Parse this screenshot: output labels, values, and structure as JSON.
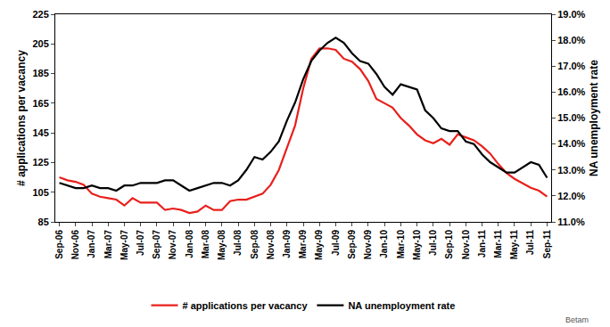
{
  "chart_data": {
    "type": "line",
    "categories": [
      "Sep-06",
      null,
      "Nov-06",
      null,
      "Jan-07",
      null,
      "Mar-07",
      null,
      "May-07",
      null,
      "Jul-07",
      null,
      "Sep-07",
      null,
      "Nov-07",
      null,
      "Jan-08",
      null,
      "Mar-08",
      null,
      "May-08",
      null,
      "Jul-08",
      null,
      "Sep-08",
      null,
      "Nov-08",
      null,
      "Jan-09",
      null,
      "Mar-09",
      null,
      "May-09",
      null,
      "Jul-09",
      null,
      "Sep-09",
      null,
      "Nov-09",
      null,
      "Jan-10",
      null,
      "Mar-10",
      null,
      "May-10",
      null,
      "Jul-10",
      null,
      "Sep-10",
      null,
      "Nov-10",
      null,
      "Jan-11",
      null,
      "Mar-11",
      null,
      "May-11",
      null,
      "Jul-11",
      null,
      "Sep-11"
    ],
    "y_label": "# applications per vacancy",
    "y2_label": "NA unemployment rate",
    "ylim": [
      85,
      225
    ],
    "yticks": [
      85,
      105,
      125,
      145,
      165,
      185,
      205,
      225
    ],
    "y2lim": [
      11,
      19
    ],
    "y2ticks": [
      {
        "value": 11,
        "label": "11.0%"
      },
      {
        "value": 12,
        "label": "12.0%"
      },
      {
        "value": 13,
        "label": "13.0%"
      },
      {
        "value": 14,
        "label": "14.0%"
      },
      {
        "value": 15,
        "label": "15.0%"
      },
      {
        "value": 16,
        "label": "16.0%"
      },
      {
        "value": 17,
        "label": "17.0%"
      },
      {
        "value": 18,
        "label": "18.0%"
      },
      {
        "value": 19,
        "label": "19.0%"
      }
    ],
    "grid": false,
    "legend": "bottom",
    "annotations": [
      {
        "text": "Betam"
      }
    ],
    "series": [
      {
        "name": "# applications per vacancy",
        "color": "#e8201c",
        "axis": "y",
        "values": [
          115,
          113,
          112,
          110,
          104,
          102,
          101,
          100,
          96,
          101,
          98,
          98,
          98,
          93,
          94,
          93,
          91,
          92,
          96,
          93,
          93,
          99,
          100,
          100,
          102,
          104,
          110,
          120,
          135,
          150,
          175,
          195,
          202,
          202,
          201,
          195,
          193,
          188,
          180,
          168,
          165,
          162,
          155,
          150,
          144,
          140,
          138,
          141,
          137,
          144,
          142,
          140,
          136,
          131,
          124,
          118,
          114,
          111,
          108,
          106,
          102
        ]
      },
      {
        "name": "NA unemployment rate",
        "color": "#000000",
        "axis": "y2",
        "values": [
          12.5,
          12.4,
          12.3,
          12.3,
          12.4,
          12.3,
          12.3,
          12.2,
          12.4,
          12.4,
          12.5,
          12.5,
          12.5,
          12.6,
          12.6,
          12.4,
          12.2,
          12.3,
          12.4,
          12.5,
          12.5,
          12.4,
          12.6,
          13.0,
          13.5,
          13.4,
          13.7,
          14.1,
          14.9,
          15.6,
          16.5,
          17.2,
          17.6,
          17.9,
          18.1,
          17.9,
          17.5,
          17.2,
          17.1,
          16.7,
          16.2,
          15.9,
          16.3,
          16.2,
          16.1,
          15.3,
          15.0,
          14.6,
          14.5,
          14.5,
          14.1,
          14.0,
          13.6,
          13.3,
          13.1,
          12.9,
          12.9,
          13.1,
          13.3,
          13.2,
          12.7
        ]
      }
    ]
  }
}
